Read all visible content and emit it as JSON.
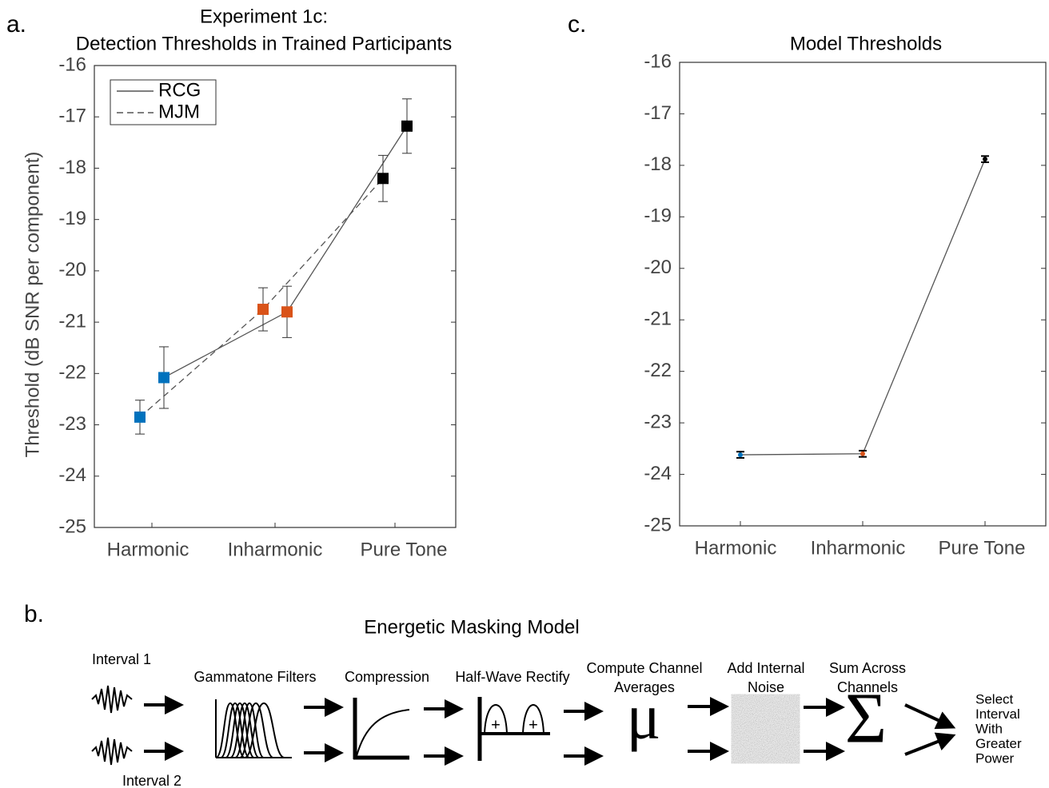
{
  "panel_labels": [
    "a.",
    "b.",
    "c."
  ],
  "chart_data": [
    {
      "type": "line",
      "title": [
        "Experiment 1c:",
        "Detection Thresholds in Trained Participants"
      ],
      "ylabel": "Threshold (dB SNR per component)",
      "categories": [
        "Harmonic",
        "Inharmonic",
        "Pure Tone"
      ],
      "category_colors": [
        "#0072bd",
        "#d95319",
        "#000000"
      ],
      "series": [
        {
          "name": "RCG",
          "color": "#555555",
          "line_style": "solid",
          "values": [
            -22.08,
            -20.8,
            -17.18
          ],
          "errors": [
            0.6,
            0.5,
            0.53
          ]
        },
        {
          "name": "MJM",
          "color": "#555555",
          "line_style": "dashed",
          "values": [
            -22.85,
            -20.75,
            -18.2
          ],
          "errors": [
            0.33,
            0.42,
            0.45
          ]
        }
      ],
      "ylim": [
        -25,
        -16
      ],
      "yticks": [
        -25,
        -24,
        -23,
        -22,
        -21,
        -20,
        -19,
        -18,
        -17,
        -16
      ],
      "legend": "upper left"
    },
    {
      "type": "line",
      "title": [
        "Model Thresholds"
      ],
      "categories": [
        "Harmonic",
        "Inharmonic",
        "Pure Tone"
      ],
      "category_colors": [
        "#0072bd",
        "#d95319",
        "#000000"
      ],
      "series": [
        {
          "color": "#555555",
          "line_style": "solid",
          "values": [
            -23.62,
            -23.6,
            -17.88
          ],
          "errors": [
            0.06,
            0.06,
            0.06
          ]
        }
      ],
      "ylim": [
        -25,
        -16
      ],
      "yticks": [
        -25,
        -24,
        -23,
        -22,
        -21,
        -20,
        -19,
        -18,
        -17,
        -16
      ]
    }
  ],
  "diagram": {
    "title": "Energetic Masking Model",
    "inputs": [
      "Interval 1",
      "Interval 2"
    ],
    "stages": [
      [
        "Gammatone Filters"
      ],
      [
        "Compression"
      ],
      [
        "Half-Wave Rectify"
      ],
      [
        "Compute Channel",
        "Averages"
      ],
      [
        "Add Internal",
        "Noise"
      ],
      [
        "Sum Across",
        "Channels"
      ]
    ],
    "symbols": {
      "plus": "+",
      "mu": "μ",
      "sigma": "Σ"
    },
    "output": [
      "Select",
      "Interval",
      "With",
      "Greater",
      "Power"
    ]
  }
}
